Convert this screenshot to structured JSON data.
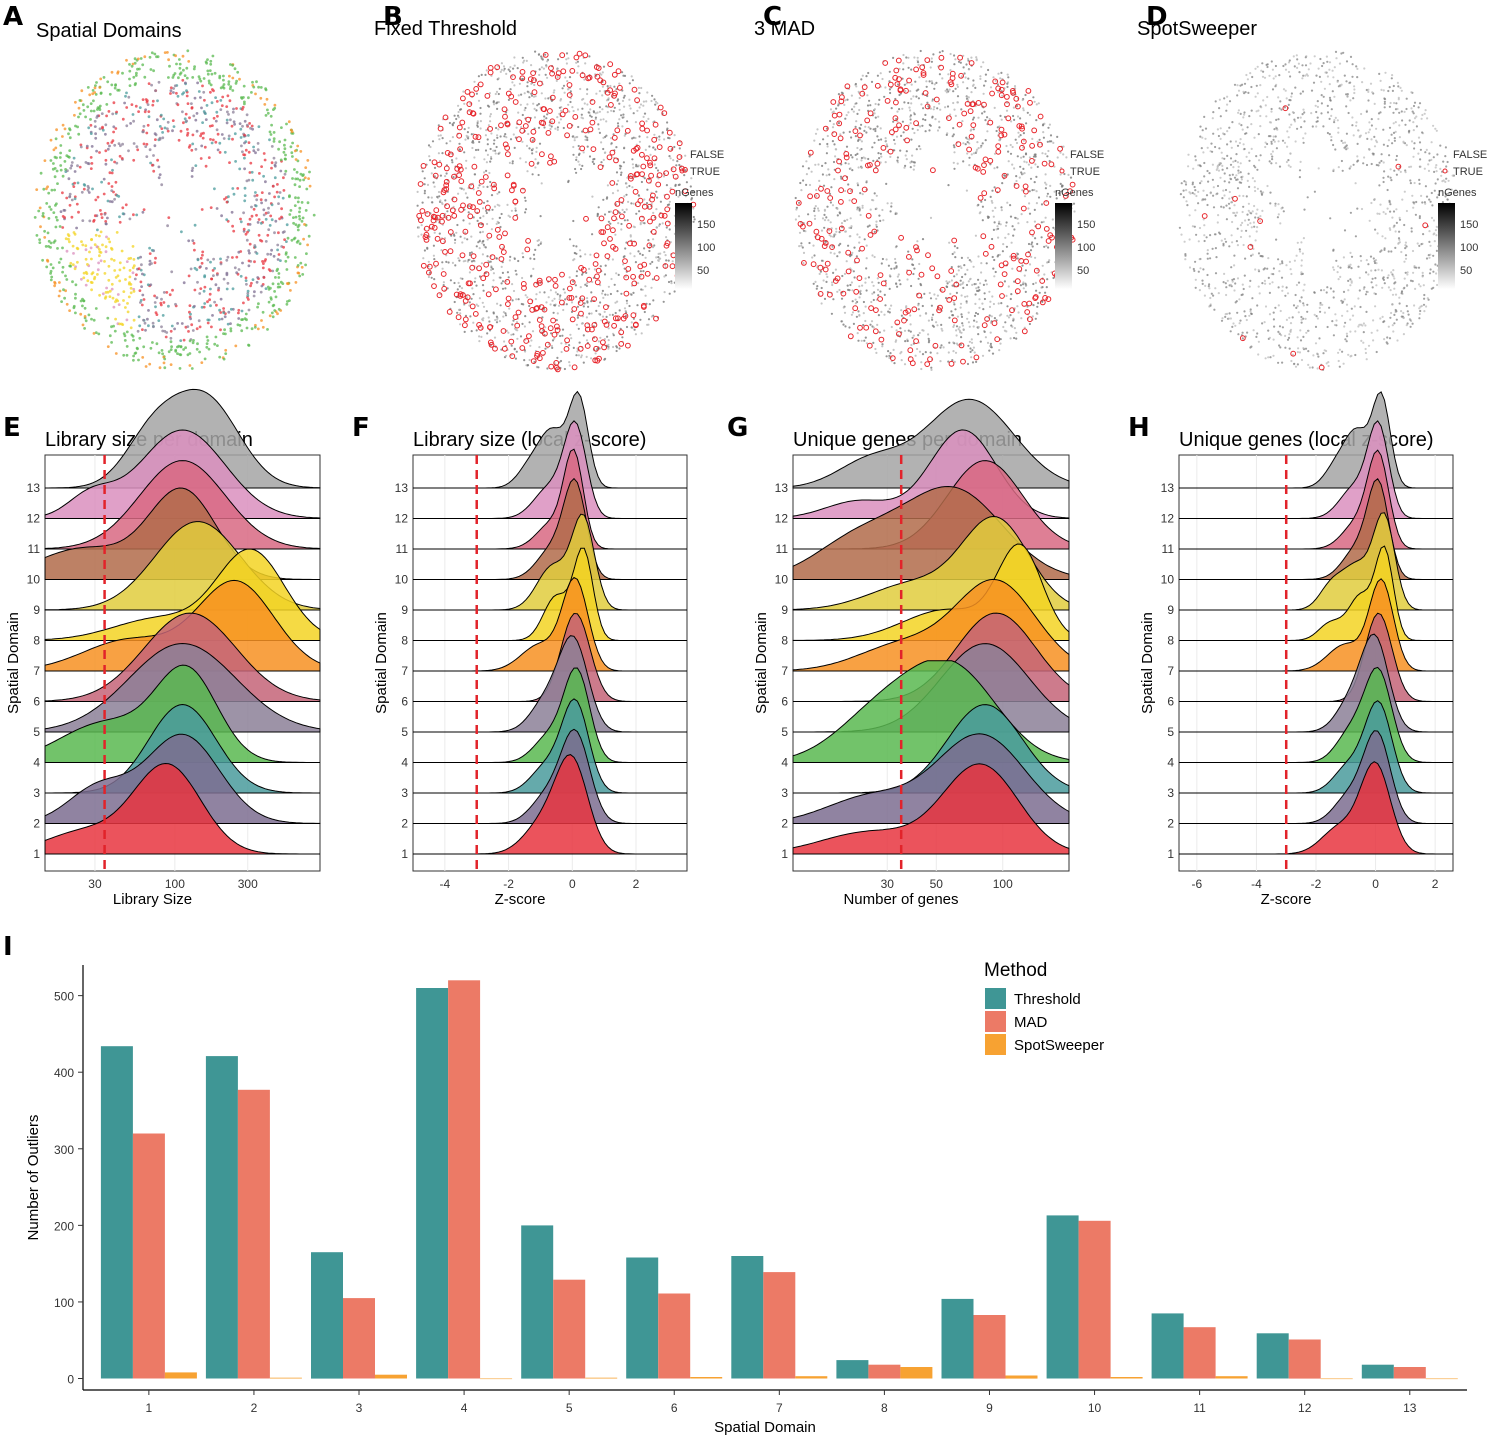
{
  "colors": {
    "domains": [
      "#e8353f",
      "#7d6d91",
      "#4a9b9c",
      "#59b950",
      "#8c8098",
      "#c46478",
      "#f79022",
      "#f3d423",
      "#e0cd3d",
      "#b16b4a",
      "#d86883",
      "#db8fbe",
      "#a5a5a5"
    ],
    "outlier": "#e8262c",
    "threshold": "#3f9695",
    "mad": "#ec7a66",
    "spotsweeper": "#f7a232",
    "vline": "#e2232a"
  },
  "maps": [
    {
      "letter": "A",
      "title": "Spatial Domains",
      "variant": "domains",
      "density": 0
    },
    {
      "letter": "B",
      "title": "Fixed Threshold",
      "variant": "outliers",
      "density": 0.25,
      "legend": {
        "false_label": "FALSE",
        "true_label": "TRUE",
        "scale_title": "nGenes",
        "ticks": [
          "150",
          "100",
          "50"
        ]
      }
    },
    {
      "letter": "C",
      "title": "3 MAD",
      "variant": "outliers",
      "density": 0.16,
      "legend": {
        "false_label": "FALSE",
        "true_label": "TRUE",
        "scale_title": "nGenes",
        "ticks": [
          "150",
          "100",
          "50"
        ]
      }
    },
    {
      "letter": "D",
      "title": "SpotSweeper",
      "variant": "sparse",
      "density": 0.006,
      "legend": {
        "false_label": "FALSE",
        "true_label": "TRUE",
        "scale_title": "nGenes",
        "ticks": [
          "150",
          "100",
          "50"
        ]
      }
    }
  ],
  "chart_data": [
    {
      "id": "E",
      "letter": "E",
      "type": "ridgeline",
      "title": "Library size per domain",
      "xlabel": "Library Size",
      "ylabel": "Spatial Domain",
      "x_scale": "log10",
      "xlim": [
        1.15,
        2.95
      ],
      "xticks": [
        {
          "label": "30",
          "value": 1.477
        },
        {
          "label": "100",
          "value": 2.0
        },
        {
          "label": "300",
          "value": 2.477
        }
      ],
      "cutoff_line": 1.54,
      "categories": [
        "1",
        "2",
        "3",
        "4",
        "5",
        "6",
        "7",
        "8",
        "9",
        "10",
        "11",
        "12",
        "13"
      ],
      "series": [
        {
          "name": "1",
          "bumps": [
            [
              1.95,
              0.22,
              1.0
            ],
            [
              1.4,
              0.25,
              0.25
            ]
          ]
        },
        {
          "name": "2",
          "bumps": [
            [
              2.05,
              0.24,
              1.0
            ],
            [
              1.5,
              0.2,
              0.4
            ]
          ]
        },
        {
          "name": "3",
          "bumps": [
            [
              2.05,
              0.22,
              1.0
            ]
          ]
        },
        {
          "name": "4",
          "bumps": [
            [
              2.08,
              0.2,
              1.0
            ],
            [
              1.55,
              0.3,
              0.45
            ]
          ]
        },
        {
          "name": "5",
          "bumps": [
            [
              2.05,
              0.35,
              1.0
            ]
          ]
        },
        {
          "name": "6",
          "bumps": [
            [
              2.1,
              0.3,
              1.0
            ]
          ]
        },
        {
          "name": "7",
          "bumps": [
            [
              2.4,
              0.25,
              1.0
            ],
            [
              1.7,
              0.3,
              0.35
            ]
          ]
        },
        {
          "name": "8",
          "bumps": [
            [
              2.5,
              0.22,
              1.0
            ],
            [
              1.9,
              0.3,
              0.25
            ]
          ]
        },
        {
          "name": "9",
          "bumps": [
            [
              2.15,
              0.28,
              1.0
            ]
          ]
        },
        {
          "name": "10",
          "bumps": [
            [
              2.05,
              0.22,
              1.0
            ],
            [
              1.4,
              0.3,
              0.35
            ]
          ]
        },
        {
          "name": "11",
          "bumps": [
            [
              2.05,
              0.28,
              1.0
            ]
          ]
        },
        {
          "name": "12",
          "bumps": [
            [
              2.05,
              0.28,
              1.0
            ],
            [
              1.45,
              0.15,
              0.25
            ]
          ]
        },
        {
          "name": "13",
          "bumps": [
            [
              2.2,
              0.22,
              1.0
            ],
            [
              1.85,
              0.18,
              0.55
            ]
          ]
        }
      ]
    },
    {
      "id": "F",
      "letter": "F",
      "type": "ridgeline",
      "title": "Library size (local z-score)",
      "xlabel": "Z-score",
      "ylabel": "Spatial Domain",
      "x_scale": "linear",
      "xlim": [
        -5.0,
        3.6
      ],
      "xticks": [
        {
          "label": "-4",
          "value": -4
        },
        {
          "label": "-2",
          "value": -2
        },
        {
          "label": "0",
          "value": 0
        },
        {
          "label": "2",
          "value": 2
        }
      ],
      "cutoff_line": -3,
      "categories": [
        "1",
        "2",
        "3",
        "4",
        "5",
        "6",
        "7",
        "8",
        "9",
        "10",
        "11",
        "12",
        "13"
      ],
      "series": [
        {
          "name": "1",
          "bumps": [
            [
              0.0,
              0.5,
              1.0
            ],
            [
              -0.9,
              0.6,
              0.35
            ]
          ]
        },
        {
          "name": "2",
          "bumps": [
            [
              0.1,
              0.45,
              1.0
            ],
            [
              -0.8,
              0.5,
              0.3
            ]
          ]
        },
        {
          "name": "3",
          "bumps": [
            [
              0.1,
              0.42,
              1.0
            ],
            [
              -0.8,
              0.5,
              0.3
            ]
          ]
        },
        {
          "name": "4",
          "bumps": [
            [
              0.15,
              0.4,
              1.0
            ],
            [
              -0.7,
              0.5,
              0.3
            ]
          ]
        },
        {
          "name": "5",
          "bumps": [
            [
              0.05,
              0.45,
              1.0
            ],
            [
              -0.8,
              0.5,
              0.35
            ]
          ]
        },
        {
          "name": "6",
          "bumps": [
            [
              0.1,
              0.45,
              1.0
            ]
          ]
        },
        {
          "name": "7",
          "bumps": [
            [
              0.1,
              0.4,
              1.0
            ],
            [
              -1.0,
              0.6,
              0.3
            ]
          ]
        },
        {
          "name": "8",
          "bumps": [
            [
              0.35,
              0.3,
              1.0
            ],
            [
              -0.5,
              0.4,
              0.5
            ]
          ]
        },
        {
          "name": "9",
          "bumps": [
            [
              0.35,
              0.35,
              1.0
            ],
            [
              -0.6,
              0.5,
              0.5
            ]
          ]
        },
        {
          "name": "10",
          "bumps": [
            [
              0.1,
              0.35,
              1.0
            ],
            [
              -0.6,
              0.5,
              0.35
            ]
          ]
        },
        {
          "name": "11",
          "bumps": [
            [
              0.05,
              0.3,
              1.0
            ],
            [
              -0.6,
              0.5,
              0.3
            ]
          ]
        },
        {
          "name": "12",
          "bumps": [
            [
              0.1,
              0.35,
              1.0
            ],
            [
              -0.7,
              0.5,
              0.35
            ]
          ]
        },
        {
          "name": "13",
          "bumps": [
            [
              0.2,
              0.3,
              1.0
            ],
            [
              -0.6,
              0.4,
              0.6
            ],
            [
              -1.3,
              0.4,
              0.25
            ]
          ]
        }
      ]
    },
    {
      "id": "G",
      "letter": "G",
      "type": "ridgeline",
      "title": "Unique genes per domain",
      "xlabel": "Number of genes",
      "ylabel": "Spatial Domain",
      "x_scale": "log10",
      "xlim": [
        1.05,
        2.3
      ],
      "xticks": [
        {
          "label": "30",
          "value": 1.477
        },
        {
          "label": "50",
          "value": 1.699
        },
        {
          "label": "100",
          "value": 2.0
        }
      ],
      "cutoff_line": 1.54,
      "categories": [
        "1",
        "2",
        "3",
        "4",
        "5",
        "6",
        "7",
        "8",
        "9",
        "10",
        "11",
        "12",
        "13"
      ],
      "series": [
        {
          "name": "1",
          "bumps": [
            [
              1.9,
              0.17,
              1.0
            ],
            [
              1.4,
              0.22,
              0.25
            ]
          ]
        },
        {
          "name": "2",
          "bumps": [
            [
              1.9,
              0.2,
              1.0
            ],
            [
              1.4,
              0.2,
              0.3
            ]
          ]
        },
        {
          "name": "3",
          "bumps": [
            [
              1.92,
              0.17,
              1.0
            ]
          ]
        },
        {
          "name": "4",
          "bumps": [
            [
              1.78,
              0.2,
              1.0
            ],
            [
              1.45,
              0.2,
              0.55
            ]
          ]
        },
        {
          "name": "5",
          "bumps": [
            [
              1.92,
              0.2,
              1.0
            ]
          ]
        },
        {
          "name": "6",
          "bumps": [
            [
              1.97,
              0.18,
              1.0
            ]
          ]
        },
        {
          "name": "7",
          "bumps": [
            [
              1.97,
              0.18,
              1.0
            ],
            [
              1.55,
              0.2,
              0.3
            ]
          ]
        },
        {
          "name": "8",
          "bumps": [
            [
              2.08,
              0.1,
              1.0
            ],
            [
              1.75,
              0.2,
              0.35
            ]
          ]
        },
        {
          "name": "9",
          "bumps": [
            [
              1.97,
              0.15,
              1.0
            ],
            [
              1.6,
              0.2,
              0.3
            ]
          ]
        },
        {
          "name": "10",
          "bumps": [
            [
              1.78,
              0.22,
              1.0
            ],
            [
              1.35,
              0.2,
              0.45
            ]
          ]
        },
        {
          "name": "11",
          "bumps": [
            [
              1.92,
              0.17,
              1.0
            ]
          ]
        },
        {
          "name": "12",
          "bumps": [
            [
              1.82,
              0.15,
              1.0
            ],
            [
              1.35,
              0.15,
              0.2
            ]
          ]
        },
        {
          "name": "13",
          "bumps": [
            [
              1.85,
              0.2,
              1.0
            ],
            [
              1.4,
              0.15,
              0.3
            ]
          ]
        }
      ]
    },
    {
      "id": "H",
      "letter": "H",
      "type": "ridgeline",
      "title": "Unique genes (local z-score)",
      "xlabel": "Z-score",
      "ylabel": "Spatial Domain",
      "x_scale": "linear",
      "xlim": [
        -6.6,
        2.6
      ],
      "xticks": [
        {
          "label": "-6",
          "value": -6
        },
        {
          "label": "-4",
          "value": -4
        },
        {
          "label": "-2",
          "value": -2
        },
        {
          "label": "0",
          "value": 0
        },
        {
          "label": "2",
          "value": 2
        }
      ],
      "cutoff_line": -3,
      "categories": [
        "1",
        "2",
        "3",
        "4",
        "5",
        "6",
        "7",
        "8",
        "9",
        "10",
        "11",
        "12",
        "13"
      ],
      "series": [
        {
          "name": "1",
          "bumps": [
            [
              0.0,
              0.5,
              1.0
            ],
            [
              -1.2,
              0.6,
              0.3
            ]
          ]
        },
        {
          "name": "2",
          "bumps": [
            [
              0.05,
              0.45,
              1.0
            ],
            [
              -0.9,
              0.5,
              0.3
            ]
          ]
        },
        {
          "name": "3",
          "bumps": [
            [
              0.1,
              0.45,
              1.0
            ],
            [
              -0.9,
              0.5,
              0.3
            ]
          ]
        },
        {
          "name": "4",
          "bumps": [
            [
              0.1,
              0.45,
              1.0
            ],
            [
              -0.8,
              0.5,
              0.35
            ]
          ]
        },
        {
          "name": "5",
          "bumps": [
            [
              0.0,
              0.45,
              1.0
            ],
            [
              -0.8,
              0.5,
              0.35
            ]
          ]
        },
        {
          "name": "6",
          "bumps": [
            [
              0.1,
              0.45,
              1.0
            ]
          ]
        },
        {
          "name": "7",
          "bumps": [
            [
              0.2,
              0.4,
              1.0
            ],
            [
              -1.0,
              0.6,
              0.3
            ]
          ]
        },
        {
          "name": "8",
          "bumps": [
            [
              0.3,
              0.3,
              1.0
            ],
            [
              -0.5,
              0.4,
              0.5
            ],
            [
              -1.5,
              0.4,
              0.2
            ]
          ]
        },
        {
          "name": "9",
          "bumps": [
            [
              0.3,
              0.35,
              1.0
            ],
            [
              -0.6,
              0.5,
              0.5
            ],
            [
              -1.5,
              0.4,
              0.25
            ]
          ]
        },
        {
          "name": "10",
          "bumps": [
            [
              0.1,
              0.35,
              1.0
            ],
            [
              -0.6,
              0.5,
              0.35
            ]
          ]
        },
        {
          "name": "11",
          "bumps": [
            [
              0.1,
              0.35,
              1.0
            ],
            [
              -0.6,
              0.5,
              0.3
            ]
          ]
        },
        {
          "name": "12",
          "bumps": [
            [
              0.1,
              0.35,
              1.0
            ],
            [
              -0.7,
              0.5,
              0.35
            ]
          ]
        },
        {
          "name": "13",
          "bumps": [
            [
              0.2,
              0.3,
              1.0
            ],
            [
              -0.6,
              0.4,
              0.6
            ],
            [
              -1.3,
              0.4,
              0.25
            ]
          ]
        }
      ]
    },
    {
      "id": "I",
      "letter": "I",
      "type": "bar",
      "title": "",
      "xlabel": "Spatial Domain",
      "ylabel": "Number of Outliers",
      "ylim": [
        -15,
        540
      ],
      "yticks": [
        0,
        100,
        200,
        300,
        400,
        500
      ],
      "categories": [
        "1",
        "2",
        "3",
        "4",
        "5",
        "6",
        "7",
        "8",
        "9",
        "10",
        "11",
        "12",
        "13"
      ],
      "legend_title": "Method",
      "series": [
        {
          "name": "Threshold",
          "values": [
            434,
            421,
            165,
            510,
            200,
            158,
            160,
            24,
            104,
            213,
            85,
            59,
            18
          ]
        },
        {
          "name": "MAD",
          "values": [
            320,
            377,
            105,
            520,
            129,
            111,
            139,
            18,
            83,
            206,
            67,
            51,
            15
          ]
        },
        {
          "name": "SpotSweeper",
          "values": [
            8,
            1,
            5,
            0,
            1,
            2,
            3,
            15,
            4,
            2,
            3,
            0,
            0
          ]
        }
      ]
    }
  ]
}
